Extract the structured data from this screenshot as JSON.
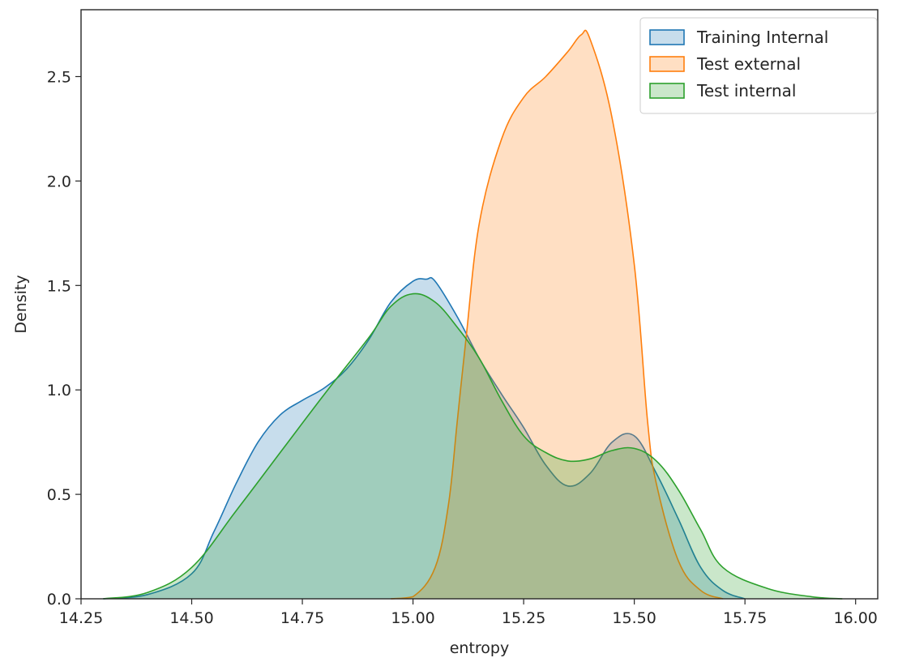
{
  "chart_data": {
    "type": "area",
    "title": "",
    "xlabel": "entropy",
    "ylabel": "Density",
    "xlim": [
      14.25,
      16.05
    ],
    "ylim": [
      0,
      2.82
    ],
    "x_ticks": [
      "14.25",
      "14.50",
      "14.75",
      "15.00",
      "15.25",
      "15.50",
      "15.75",
      "16.00"
    ],
    "x_tick_values": [
      14.25,
      14.5,
      14.75,
      15.0,
      15.25,
      15.5,
      15.75,
      16.0
    ],
    "y_ticks": [
      "0.0",
      "0.5",
      "1.0",
      "1.5",
      "2.0",
      "2.5"
    ],
    "y_tick_values": [
      0.0,
      0.5,
      1.0,
      1.5,
      2.0,
      2.5
    ],
    "grid": false,
    "legend_position": "top-right",
    "series": [
      {
        "name": "Training Internal",
        "color": "#1f77b4",
        "x": [
          14.3,
          14.4,
          14.5,
          14.55,
          14.6,
          14.65,
          14.7,
          14.75,
          14.8,
          14.85,
          14.9,
          14.95,
          15.0,
          15.03,
          15.05,
          15.1,
          15.15,
          15.2,
          15.25,
          15.3,
          15.35,
          15.4,
          15.45,
          15.5,
          15.55,
          15.6,
          15.65,
          15.7,
          15.75
        ],
        "y": [
          0.0,
          0.02,
          0.12,
          0.32,
          0.55,
          0.75,
          0.88,
          0.95,
          1.01,
          1.1,
          1.24,
          1.42,
          1.52,
          1.53,
          1.52,
          1.35,
          1.15,
          0.98,
          0.82,
          0.64,
          0.54,
          0.6,
          0.75,
          0.78,
          0.6,
          0.38,
          0.15,
          0.04,
          0.0
        ]
      },
      {
        "name": "Test external",
        "color": "#ff7f0e",
        "x": [
          14.95,
          15.0,
          15.05,
          15.08,
          15.1,
          15.12,
          15.15,
          15.2,
          15.25,
          15.3,
          15.35,
          15.38,
          15.4,
          15.45,
          15.5,
          15.53,
          15.55,
          15.6,
          15.65,
          15.7
        ],
        "y": [
          0.0,
          0.01,
          0.15,
          0.45,
          0.85,
          1.25,
          1.8,
          2.2,
          2.4,
          2.5,
          2.62,
          2.7,
          2.68,
          2.3,
          1.6,
          0.85,
          0.55,
          0.18,
          0.04,
          0.0
        ]
      },
      {
        "name": "Test internal",
        "color": "#2ca02c",
        "x": [
          14.3,
          14.4,
          14.5,
          14.6,
          14.7,
          14.8,
          14.9,
          14.95,
          15.0,
          15.05,
          15.1,
          15.15,
          15.2,
          15.25,
          15.3,
          15.35,
          15.4,
          15.45,
          15.5,
          15.55,
          15.6,
          15.65,
          15.7,
          15.8,
          15.9,
          15.97
        ],
        "y": [
          0.0,
          0.03,
          0.15,
          0.42,
          0.7,
          0.98,
          1.25,
          1.4,
          1.46,
          1.42,
          1.3,
          1.15,
          0.95,
          0.78,
          0.7,
          0.66,
          0.67,
          0.71,
          0.72,
          0.66,
          0.52,
          0.33,
          0.15,
          0.05,
          0.01,
          0.0
        ]
      }
    ]
  }
}
